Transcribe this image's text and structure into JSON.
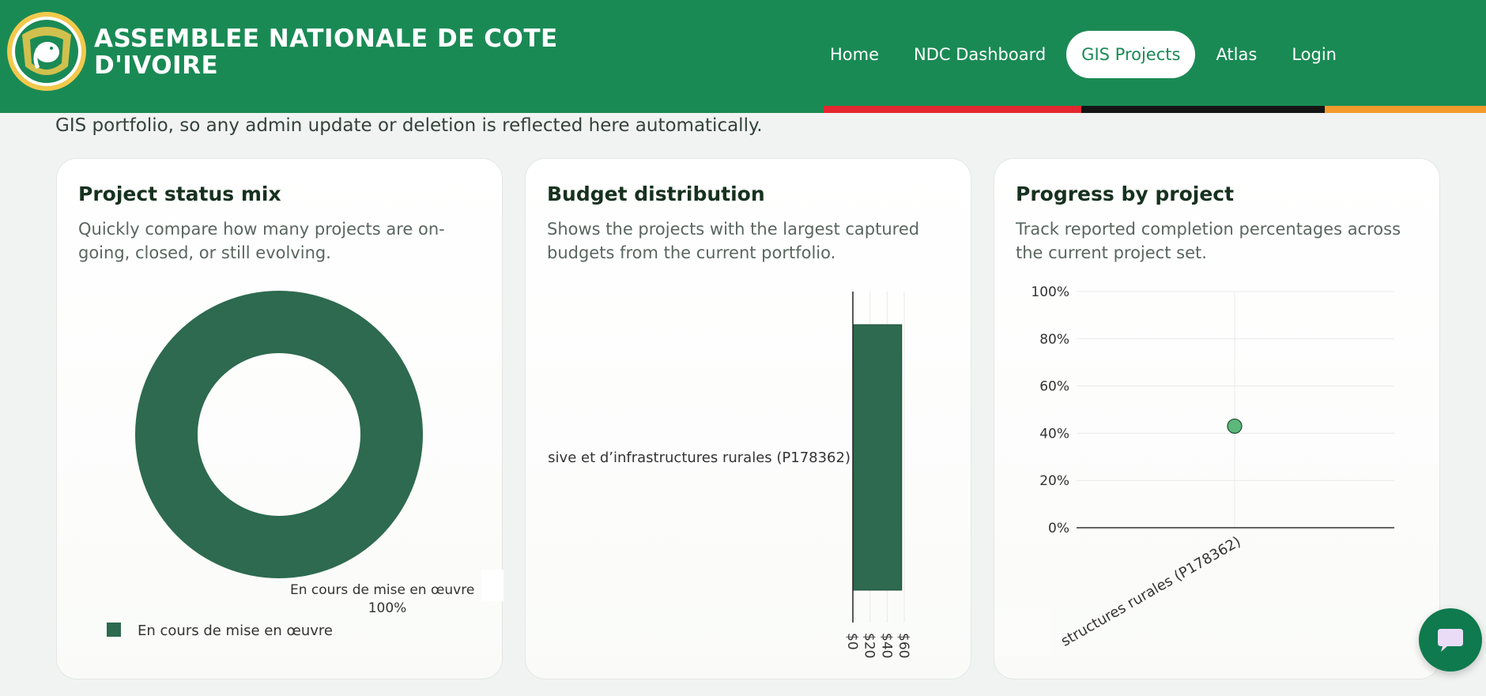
{
  "header": {
    "title_line1": "ASSEMBLEE NATIONALE DE COTE",
    "title_line2": "D'IVOIRE",
    "logo_icon": "coat-of-arms-elephant-icon",
    "nav": [
      {
        "label": "Home",
        "active": false
      },
      {
        "label": "NDC Dashboard",
        "active": false
      },
      {
        "label": "GIS Projects",
        "active": true
      },
      {
        "label": "Atlas",
        "active": false
      },
      {
        "label": "Login",
        "active": false
      }
    ],
    "colors": {
      "header": "#1a8a55",
      "flag_red": "#e3262f",
      "flag_black": "#151515",
      "flag_orange": "#f39a2c"
    }
  },
  "intro_text": "GIS portfolio, so any admin update or deletion is reflected here automatically.",
  "cards": {
    "status": {
      "title": "Project status mix",
      "description": "Quickly compare how many projects are on-going, closed, or still evolving."
    },
    "budget": {
      "title": "Budget distribution",
      "description": "Shows the projects with the largest captured budgets from the current portfolio."
    },
    "progress": {
      "title": "Progress by project",
      "description": "Track reported completion percentages across the current project set."
    }
  },
  "chart_data": [
    {
      "type": "pie",
      "title": "Project status mix",
      "labels": [
        "En cours de mise en œuvre"
      ],
      "values": [
        100
      ],
      "slice_label_text": "En cours de mise en œuvre",
      "slice_percent_text": "100%",
      "legend": [
        "En cours de mise en œuvre"
      ],
      "legend_position": "bottom-left",
      "colors": [
        "#2d6a4f"
      ]
    },
    {
      "type": "bar",
      "orientation": "horizontal",
      "title": "Budget distribution",
      "categories": [
        "sive et d’infrastructures rurales (P178362)"
      ],
      "values": [
        57
      ],
      "x_ticks": [
        "$0",
        "$20",
        "$40",
        "$60"
      ],
      "xlim": [
        0,
        60
      ],
      "colors": [
        "#2d6a4f"
      ]
    },
    {
      "type": "scatter",
      "title": "Progress by project",
      "categories": [
        "structures rurales (P178362)"
      ],
      "values": [
        43
      ],
      "y_ticks": [
        "0%",
        "20%",
        "40%",
        "60%",
        "80%",
        "100%"
      ],
      "ylim": [
        0,
        100
      ],
      "grid": true,
      "colors": [
        "#5cb87a"
      ]
    }
  ],
  "chat": {
    "icon": "chat-bubble-icon"
  }
}
